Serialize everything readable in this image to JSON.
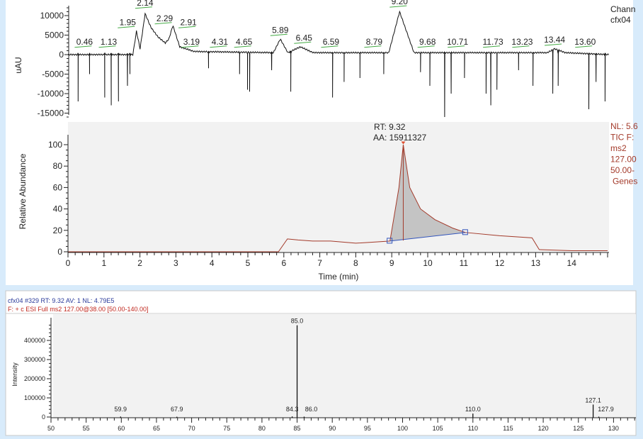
{
  "colors": {
    "background": "#d8ebfb",
    "plot_gray": "#f2f2f2",
    "tic_trace": "#a33a2a",
    "baseline": "#3355bb",
    "header_blue": "#2a3a9a",
    "header_red": "#c0281e",
    "peak_label_underline": "#44aa44"
  },
  "chart_data": [
    {
      "type": "line",
      "name": "uv-chromatogram",
      "ylabel": "uAU",
      "xlim": [
        0,
        15
      ],
      "ylim": [
        -16000,
        12000
      ],
      "yticks": [
        "10000",
        "5000",
        "0",
        "-5000",
        "-10000",
        "-15000"
      ],
      "ytick_values": [
        10000,
        5000,
        0,
        -5000,
        -10000,
        -15000
      ],
      "side_labels": [
        "Chann",
        "cfx04"
      ],
      "trace": [
        [
          0,
          0
        ],
        [
          1.8,
          0
        ],
        [
          1.9,
          6000
        ],
        [
          2.0,
          1500
        ],
        [
          2.14,
          10500
        ],
        [
          2.3,
          7000
        ],
        [
          2.5,
          4500
        ],
        [
          2.7,
          3000
        ],
        [
          2.8,
          4000
        ],
        [
          2.91,
          7500
        ],
        [
          3.1,
          2000
        ],
        [
          3.5,
          800
        ],
        [
          5.7,
          500
        ],
        [
          5.89,
          4000
        ],
        [
          6.1,
          500
        ],
        [
          6.45,
          2000
        ],
        [
          6.8,
          500
        ],
        [
          8.9,
          500
        ],
        [
          9.2,
          11000
        ],
        [
          9.6,
          500
        ],
        [
          13.3,
          500
        ],
        [
          13.5,
          1500
        ],
        [
          13.8,
          500
        ],
        [
          15,
          0
        ]
      ],
      "spikes": [
        [
          0.28,
          -12000
        ],
        [
          0.6,
          -5000
        ],
        [
          1.02,
          -11000
        ],
        [
          1.2,
          -13000
        ],
        [
          1.4,
          -12000
        ],
        [
          1.65,
          -8000
        ],
        [
          1.72,
          -5000
        ],
        [
          3.9,
          -3500
        ],
        [
          4.76,
          -5000
        ],
        [
          4.98,
          -9000
        ],
        [
          5.04,
          -9500
        ],
        [
          5.65,
          -4000
        ],
        [
          6.18,
          -9500
        ],
        [
          7.34,
          -11000
        ],
        [
          7.66,
          -7000
        ],
        [
          8.1,
          -6000
        ],
        [
          8.76,
          -5000
        ],
        [
          9.78,
          -4500
        ],
        [
          10.04,
          -8000
        ],
        [
          10.45,
          -16000
        ],
        [
          10.63,
          -10000
        ],
        [
          11.0,
          -6000
        ],
        [
          11.6,
          -10000
        ],
        [
          11.73,
          -13000
        ],
        [
          11.9,
          -9000
        ],
        [
          12.5,
          -4000
        ],
        [
          12.9,
          -8000
        ],
        [
          13.45,
          -10000
        ],
        [
          13.6,
          -8000
        ],
        [
          14.45,
          -14000
        ],
        [
          14.65,
          -7000
        ],
        [
          14.9,
          -12000
        ]
      ],
      "peak_labels": [
        {
          "label": "0.46",
          "rt": 0.46,
          "y": 1500
        },
        {
          "label": "1.13",
          "rt": 1.13,
          "y": 1500
        },
        {
          "label": "1.95",
          "rt": 1.95,
          "y": 6500
        },
        {
          "label": "2.14",
          "rt": 2.14,
          "y": 11500
        },
        {
          "label": "2.29",
          "rt": 2.29,
          "y": 7500
        },
        {
          "label": "2.91",
          "rt": 2.91,
          "y": 6500
        },
        {
          "label": "3.19",
          "rt": 3.19,
          "y": 1500
        },
        {
          "label": "4.31",
          "rt": 4.31,
          "y": 1500
        },
        {
          "label": "4.65",
          "rt": 4.65,
          "y": 1500
        },
        {
          "label": "5.89",
          "rt": 5.89,
          "y": 4500
        },
        {
          "label": "6.45",
          "rt": 6.45,
          "y": 2500
        },
        {
          "label": "6.59",
          "rt": 6.59,
          "y": 1500
        },
        {
          "label": "8.79",
          "rt": 8.79,
          "y": 1500
        },
        {
          "label": "9.20",
          "rt": 9.2,
          "y": 11800
        },
        {
          "label": "9.68",
          "rt": 9.68,
          "y": 1500
        },
        {
          "label": "10.71",
          "rt": 10.71,
          "y": 1500
        },
        {
          "label": "11.73",
          "rt": 11.73,
          "y": 1500
        },
        {
          "label": "13.23",
          "rt": 13.23,
          "y": 1500
        },
        {
          "label": "13.44",
          "rt": 13.44,
          "y": 2000
        },
        {
          "label": "13.60",
          "rt": 13.6,
          "y": 1500
        }
      ]
    },
    {
      "type": "area",
      "name": "tic-chromatogram",
      "xlabel": "Time (min)",
      "ylabel": "Relative Abundance",
      "xlim": [
        0,
        15
      ],
      "ylim": [
        0,
        110
      ],
      "xticks": [
        "0",
        "1",
        "2",
        "3",
        "4",
        "5",
        "6",
        "7",
        "8",
        "9",
        "10",
        "11",
        "12",
        "13",
        "14"
      ],
      "yticks": [
        "0",
        "20",
        "40",
        "60",
        "80",
        "100"
      ],
      "trace": [
        [
          0,
          0
        ],
        [
          5.85,
          0
        ],
        [
          6.1,
          12
        ],
        [
          6.4,
          11
        ],
        [
          6.8,
          10
        ],
        [
          7.3,
          10
        ],
        [
          8,
          8
        ],
        [
          8.95,
          10
        ],
        [
          9.2,
          60
        ],
        [
          9.32,
          100
        ],
        [
          9.5,
          60
        ],
        [
          9.8,
          40
        ],
        [
          10.2,
          30
        ],
        [
          10.7,
          22
        ],
        [
          11.05,
          18
        ],
        [
          12,
          15
        ],
        [
          12.9,
          13
        ],
        [
          13.1,
          2
        ],
        [
          14,
          1
        ],
        [
          15,
          1
        ]
      ],
      "integrated_peak": {
        "start": [
          8.95,
          10
        ],
        "end": [
          11.05,
          18
        ],
        "rt_label": "RT: 9.32",
        "area_label": "AA: 15911327"
      },
      "side_labels": [
        "NL: 5.6",
        "TIC F:",
        "ms2",
        "127.00",
        "50.00-",
        "Genes"
      ]
    },
    {
      "type": "bar",
      "name": "ms2-spectrum",
      "header_line1": "cfx04 #329  RT: 9.32  AV: 1  NL: 4.79E5",
      "header_line2": "F: + c ESI Full ms2 127.00@38.00 [50.00-140.00]",
      "ylabel": "Intensity",
      "xlim": [
        50,
        133
      ],
      "ylim": [
        0,
        500000
      ],
      "xticks": [
        "50",
        "55",
        "60",
        "65",
        "70",
        "75",
        "80",
        "85",
        "90",
        "95",
        "100",
        "105",
        "110",
        "115",
        "120",
        "125",
        "130"
      ],
      "yticks": [
        "0",
        "100000",
        "200000",
        "300000",
        "400000"
      ],
      "peaks": [
        {
          "mz": 59.9,
          "intensity": 2500,
          "label": "59.9"
        },
        {
          "mz": 67.9,
          "intensity": 1500,
          "label": "67.9"
        },
        {
          "mz": 84.3,
          "intensity": 3000,
          "label": "84.3"
        },
        {
          "mz": 85.0,
          "intensity": 479000,
          "label": "85.0"
        },
        {
          "mz": 86.0,
          "intensity": 2000,
          "label": "86.0"
        },
        {
          "mz": 110.0,
          "intensity": 18000,
          "label": "110.0"
        },
        {
          "mz": 127.1,
          "intensity": 65000,
          "label": "127.1"
        },
        {
          "mz": 127.9,
          "intensity": 2000,
          "label": "127.9"
        }
      ]
    }
  ]
}
